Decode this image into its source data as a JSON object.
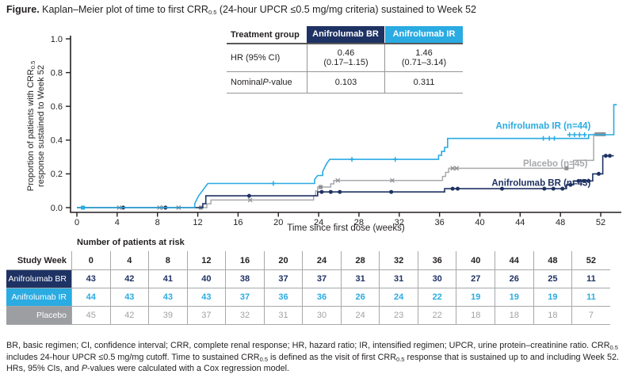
{
  "title_rich": [
    {
      "t": "Figure.",
      "s": "b"
    },
    {
      "t": " Kaplan–Meier plot of time to first CRR"
    },
    {
      "t": "0.5",
      "s": "sub"
    },
    {
      "t": " (24-hour UPCR ≤0.5 mg/mg criteria) sustained to Week 52"
    }
  ],
  "stats_table": {
    "col_header_label": "Treatment group",
    "col_header_br": "Anifrolumab BR",
    "col_header_ir": "Anifrolumab IR",
    "hr_label": "HR (95% CI)",
    "hr_br_value": "0.46",
    "hr_br_ci": "(0.17–1.15)",
    "hr_ir_value": "1.46",
    "hr_ir_ci": "(0.71–3.14)",
    "p_label_rich": [
      {
        "t": "Nominal "
      },
      {
        "t": "P",
        "s": "i"
      },
      {
        "t": "-value"
      }
    ],
    "p_br": "0.103",
    "p_ir": "0.311"
  },
  "chart_data": {
    "type": "line",
    "subtype": "kaplan-meier-step",
    "title": "Kaplan-Meier plot of time to first CRR0.5 sustained to Week 52",
    "xlabel": "Time since first dose (weeks)",
    "ylabel": "Proportion of patients with CRR0.5 response sustained to Week 52",
    "ylabel_line1_rich": [
      {
        "t": "Proportion of patients with CRR"
      },
      {
        "t": "0.5",
        "s": "sub"
      }
    ],
    "ylabel_line2": "response sustained to Week 52",
    "xlim": [
      0,
      53.6
    ],
    "ylim": [
      0,
      1.0
    ],
    "xticks": [
      0,
      4,
      8,
      12,
      16,
      20,
      24,
      28,
      32,
      36,
      40,
      44,
      48,
      52
    ],
    "yticks": [
      "0.0",
      "0.2",
      "0.4",
      "0.6",
      "0.8",
      "1.0"
    ],
    "grid": false,
    "legend": "inline-labels",
    "axis_color": "#231f20",
    "series": [
      {
        "name": "Placebo",
        "n": 45,
        "label": "Placebo (n=45)",
        "color": "#a7a9ac",
        "marker_color": "#8f9194",
        "width": 1.5,
        "label_week": 50.7,
        "label_value": 0.263,
        "steps": [
          [
            0,
            0
          ],
          [
            12.9,
            0
          ],
          [
            12.9,
            0.022
          ],
          [
            13.3,
            0.022
          ],
          [
            13.3,
            0.045
          ],
          [
            23.5,
            0.045
          ],
          [
            23.5,
            0.072
          ],
          [
            23.7,
            0.072
          ],
          [
            23.7,
            0.099
          ],
          [
            23.9,
            0.099
          ],
          [
            23.9,
            0.122
          ],
          [
            25.2,
            0.122
          ],
          [
            25.2,
            0.141
          ],
          [
            25.5,
            0.141
          ],
          [
            25.5,
            0.161
          ],
          [
            36.3,
            0.161
          ],
          [
            36.3,
            0.185
          ],
          [
            36.6,
            0.185
          ],
          [
            36.6,
            0.209
          ],
          [
            36.9,
            0.209
          ],
          [
            36.9,
            0.233
          ],
          [
            49.3,
            0.233
          ],
          [
            49.3,
            0.28
          ],
          [
            51.3,
            0.28
          ],
          [
            51.3,
            0.435
          ],
          [
            52.5,
            0.435
          ]
        ],
        "censors": [
          {
            "type": "x",
            "points": [
              [
                4.2,
                0
              ],
              [
                8.2,
                0
              ],
              [
                8.6,
                0
              ],
              [
                10.1,
                0
              ],
              [
                17.2,
                0.045
              ],
              [
                25.9,
                0.161
              ],
              [
                31.3,
                0.161
              ],
              [
                37.3,
                0.233
              ],
              [
                37.7,
                0.233
              ]
            ]
          },
          {
            "type": "square",
            "points": [
              [
                12.3,
                0
              ],
              [
                24.2,
                0.122
              ],
              [
                48.6,
                0.233
              ],
              [
                51.6,
                0.435
              ],
              [
                52.0,
                0.435
              ],
              [
                52.3,
                0.435
              ]
            ]
          }
        ]
      },
      {
        "name": "Anifrolumab BR",
        "n": 43,
        "label": "Anifrolumab BR (n=43)",
        "color": "#1e3263",
        "marker_color": "#1e3263",
        "width": 1.6,
        "label_week": 51.0,
        "label_value": 0.148,
        "steps": [
          [
            0,
            0
          ],
          [
            12.5,
            0
          ],
          [
            12.5,
            0.023
          ],
          [
            12.8,
            0.023
          ],
          [
            12.8,
            0.07
          ],
          [
            23.9,
            0.07
          ],
          [
            23.9,
            0.093
          ],
          [
            36.5,
            0.093
          ],
          [
            36.5,
            0.112
          ],
          [
            48.6,
            0.112
          ],
          [
            48.6,
            0.135
          ],
          [
            49.3,
            0.135
          ],
          [
            49.3,
            0.158
          ],
          [
            51.2,
            0.158
          ],
          [
            51.2,
            0.2
          ],
          [
            52.2,
            0.2
          ],
          [
            52.2,
            0.307
          ],
          [
            53.3,
            0.307
          ]
        ],
        "censors": [
          {
            "type": "dot",
            "points": [
              [
                4.6,
                0
              ],
              [
                8.8,
                0
              ],
              [
                17.1,
                0.07
              ],
              [
                24.3,
                0.093
              ],
              [
                25.2,
                0.093
              ],
              [
                26.1,
                0.093
              ],
              [
                31.2,
                0.093
              ],
              [
                37.3,
                0.112
              ],
              [
                37.8,
                0.112
              ],
              [
                42.2,
                0.112
              ],
              [
                46.4,
                0.112
              ],
              [
                47.3,
                0.112
              ],
              [
                48.2,
                0.112
              ],
              [
                49.0,
                0.135
              ],
              [
                49.8,
                0.158
              ],
              [
                50.3,
                0.158
              ],
              [
                50.8,
                0.158
              ],
              [
                51.8,
                0.2
              ],
              [
                52.5,
                0.307
              ],
              [
                52.9,
                0.307
              ]
            ]
          }
        ]
      },
      {
        "name": "Anifrolumab IR",
        "n": 44,
        "label": "Anifrolumab IR (n=44)",
        "color": "#2aabe2",
        "marker_color": "#2aabe2",
        "width": 1.6,
        "label_week": 51.0,
        "label_value": 0.487,
        "steps": [
          [
            0,
            0
          ],
          [
            11.7,
            0
          ],
          [
            11.7,
            0.024
          ],
          [
            11.9,
            0.048
          ],
          [
            12.1,
            0.071
          ],
          [
            12.4,
            0.095
          ],
          [
            12.7,
            0.119
          ],
          [
            13.0,
            0.143
          ],
          [
            23.6,
            0.143
          ],
          [
            23.6,
            0.167
          ],
          [
            23.9,
            0.19
          ],
          [
            24.4,
            0.19
          ],
          [
            24.4,
            0.214
          ],
          [
            24.6,
            0.238
          ],
          [
            24.8,
            0.262
          ],
          [
            25.1,
            0.286
          ],
          [
            35.9,
            0.286
          ],
          [
            35.9,
            0.31
          ],
          [
            36.2,
            0.31
          ],
          [
            36.2,
            0.333
          ],
          [
            36.5,
            0.333
          ],
          [
            36.5,
            0.357
          ],
          [
            36.8,
            0.357
          ],
          [
            36.8,
            0.41
          ],
          [
            50.8,
            0.41
          ],
          [
            50.8,
            0.432
          ],
          [
            53.3,
            0.432
          ],
          [
            53.3,
            0.61
          ],
          [
            53.6,
            0.61
          ]
        ],
        "censors": [
          {
            "type": "plus",
            "points": [
              [
                19.5,
                0.143
              ],
              [
                27.3,
                0.286
              ],
              [
                31.6,
                0.286
              ],
              [
                46.3,
                0.41
              ],
              [
                46.9,
                0.41
              ],
              [
                47.4,
                0.41
              ],
              [
                48.9,
                0.432
              ],
              [
                49.4,
                0.432
              ],
              [
                49.9,
                0.432
              ],
              [
                50.4,
                0.432
              ]
            ]
          },
          {
            "type": "square",
            "points": [
              [
                0.6,
                0
              ]
            ]
          }
        ]
      }
    ]
  },
  "risk_table": {
    "caption": "Number of patients at risk",
    "col0_header": "Study Week",
    "weeks": [
      "0",
      "4",
      "8",
      "12",
      "16",
      "20",
      "24",
      "28",
      "32",
      "36",
      "40",
      "44",
      "48",
      "52"
    ],
    "rows": [
      {
        "label": "Anifrolumab BR",
        "bg": "#1e3263",
        "label_color": "#ffffff",
        "value_color": "#1e3263",
        "bold": true,
        "values": [
          "43",
          "42",
          "41",
          "40",
          "38",
          "37",
          "37",
          "31",
          "31",
          "30",
          "27",
          "26",
          "25",
          "11"
        ]
      },
      {
        "label": "Anifrolumab IR",
        "bg": "#2aabe2",
        "label_color": "#ffffff",
        "value_color": "#2aabe2",
        "bold": true,
        "values": [
          "44",
          "43",
          "43",
          "43",
          "37",
          "36",
          "36",
          "26",
          "24",
          "22",
          "19",
          "19",
          "19",
          "11"
        ]
      },
      {
        "label": "Placebo",
        "bg": "#9c9ea1",
        "label_color": "#ffffff",
        "value_color": "#a0a2a5",
        "bold": false,
        "values": [
          "45",
          "42",
          "39",
          "37",
          "32",
          "31",
          "30",
          "24",
          "23",
          "22",
          "18",
          "18",
          "18",
          "7"
        ]
      }
    ]
  },
  "footnote_rich": [
    {
      "t": "BR, basic regimen; CI, confidence interval; CRR, complete renal response; HR, hazard ratio; IR, intensified regimen; UPCR, urine protein–creatinine ratio. CRR"
    },
    {
      "t": "0.5",
      "s": "sub"
    },
    {
      "t": " includes 24-hour UPCR ≤0.5 mg/mg cutoff. Time to sustained CRR"
    },
    {
      "t": "0.5",
      "s": "sub"
    },
    {
      "t": " is defined as the visit of first CRR"
    },
    {
      "t": "0.5",
      "s": "sub"
    },
    {
      "t": " response that is sustained up to and including Week 52. HRs, 95% CIs, and "
    },
    {
      "t": "P",
      "s": "i"
    },
    {
      "t": "-values were calculated with a Cox regression model."
    }
  ]
}
